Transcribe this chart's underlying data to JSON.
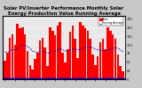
{
  "title": "Solar PV/Inverter Performance Monthly Solar Energy Production Value Running Average",
  "bar_values": [
    55,
    78,
    120,
    130,
    100,
    162,
    148,
    152,
    132,
    82,
    42,
    28,
    58,
    78,
    112,
    122,
    92,
    38,
    152,
    142,
    128,
    158,
    168,
    78,
    48,
    88,
    138,
    158,
    118,
    62,
    168,
    158,
    148,
    142,
    118,
    72,
    42,
    68,
    108,
    118,
    88,
    152,
    142,
    132,
    118,
    72,
    38,
    22
  ],
  "running_avg": [
    80,
    78,
    82,
    88,
    85,
    90,
    95,
    98,
    100,
    96,
    90,
    82,
    80,
    78,
    80,
    82,
    80,
    75,
    78,
    80,
    82,
    86,
    90,
    86,
    82,
    82,
    84,
    88,
    88,
    85,
    88,
    90,
    92,
    94,
    95,
    92,
    88,
    86,
    84,
    84,
    82,
    86,
    88,
    90,
    92,
    90,
    86,
    80
  ],
  "bar_color": "#ff0000",
  "avg_color": "#0000cc",
  "marker_color": "#0000cc",
  "bg_color": "#c8c8c8",
  "plot_bg": "#e8e8e8",
  "grid_color": "#ffffff",
  "title_fontsize": 3.8,
  "legend_entries": [
    "Value",
    "Running Average"
  ],
  "legend_colors": [
    "#ff0000",
    "#0000cc"
  ],
  "yticks": [
    0,
    25,
    50,
    75,
    100,
    125,
    150,
    175
  ],
  "ylim": [
    0,
    185
  ],
  "n_bars": 48
}
